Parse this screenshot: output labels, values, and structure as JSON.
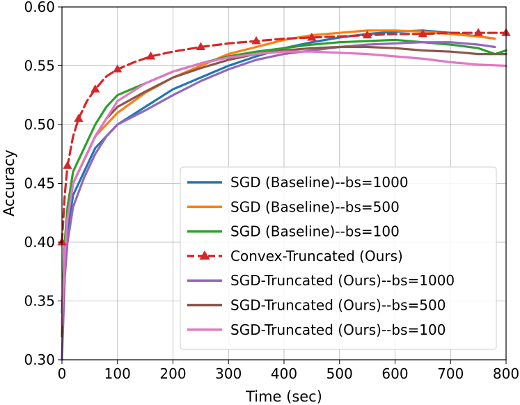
{
  "chart_data": {
    "type": "line",
    "title": "",
    "xlabel": "Time (sec)",
    "ylabel": "Accuracy",
    "xlim": [
      0,
      800
    ],
    "ylim": [
      0.3,
      0.6
    ],
    "xticks": [
      0,
      100,
      200,
      300,
      400,
      500,
      600,
      700,
      800
    ],
    "yticks": [
      0.3,
      0.35,
      0.4,
      0.45,
      0.5,
      0.55,
      0.6
    ],
    "xtick_labels": [
      "0",
      "100",
      "200",
      "300",
      "400",
      "500",
      "600",
      "700",
      "800"
    ],
    "ytick_labels": [
      "0.30",
      "0.35",
      "0.40",
      "0.45",
      "0.50",
      "0.55",
      "0.60"
    ],
    "grid": true,
    "legend_position": "lower-right",
    "series": [
      {
        "name": "SGD (Baseline)--bs=1000",
        "color": "#1f77b4",
        "style": "solid",
        "x": [
          0,
          5,
          10,
          20,
          40,
          60,
          80,
          100,
          150,
          200,
          250,
          300,
          350,
          400,
          450,
          500,
          550,
          600,
          650,
          700,
          750,
          780
        ],
        "y": [
          0.32,
          0.38,
          0.41,
          0.44,
          0.46,
          0.48,
          0.49,
          0.5,
          0.515,
          0.53,
          0.54,
          0.55,
          0.558,
          0.565,
          0.57,
          0.574,
          0.577,
          0.579,
          0.58,
          0.578,
          0.575,
          0.573
        ]
      },
      {
        "name": "SGD (Baseline)--bs=500",
        "color": "#ff7f0e",
        "style": "solid",
        "x": [
          0,
          5,
          10,
          20,
          40,
          60,
          80,
          100,
          150,
          200,
          250,
          300,
          350,
          400,
          450,
          500,
          550,
          600,
          650,
          700,
          750,
          780
        ],
        "y": [
          0.33,
          0.39,
          0.42,
          0.45,
          0.47,
          0.49,
          0.5,
          0.51,
          0.527,
          0.54,
          0.55,
          0.56,
          0.566,
          0.572,
          0.576,
          0.578,
          0.58,
          0.58,
          0.579,
          0.577,
          0.575,
          0.573
        ]
      },
      {
        "name": "SGD (Baseline)--bs=100",
        "color": "#2ca02c",
        "style": "solid",
        "x": [
          0,
          5,
          10,
          20,
          40,
          60,
          80,
          100,
          150,
          200,
          250,
          300,
          350,
          400,
          450,
          500,
          550,
          600,
          650,
          700,
          750,
          780,
          800
        ],
        "y": [
          0.34,
          0.4,
          0.43,
          0.46,
          0.48,
          0.5,
          0.515,
          0.525,
          0.535,
          0.545,
          0.552,
          0.558,
          0.562,
          0.565,
          0.568,
          0.57,
          0.571,
          0.572,
          0.57,
          0.568,
          0.565,
          0.56,
          0.563
        ]
      },
      {
        "name": "Convex-Truncated (Ours)",
        "color": "#d62728",
        "style": "dashed",
        "marker": "triangle",
        "x": [
          0,
          5,
          10,
          20,
          30,
          45,
          60,
          80,
          100,
          130,
          160,
          200,
          250,
          300,
          350,
          400,
          450,
          500,
          550,
          600,
          650,
          700,
          750,
          800
        ],
        "y": [
          0.4,
          0.44,
          0.465,
          0.49,
          0.505,
          0.52,
          0.53,
          0.541,
          0.547,
          0.553,
          0.558,
          0.562,
          0.566,
          0.569,
          0.571,
          0.573,
          0.574,
          0.575,
          0.576,
          0.577,
          0.577,
          0.578,
          0.578,
          0.578
        ]
      },
      {
        "name": "SGD-Truncated (Ours)--bs=1000",
        "color": "#9467bd",
        "style": "solid",
        "x": [
          0,
          5,
          10,
          20,
          40,
          60,
          80,
          100,
          150,
          200,
          250,
          300,
          350,
          400,
          450,
          500,
          550,
          600,
          650,
          700,
          750,
          780
        ],
        "y": [
          0.3,
          0.37,
          0.4,
          0.43,
          0.455,
          0.475,
          0.49,
          0.5,
          0.512,
          0.525,
          0.537,
          0.547,
          0.555,
          0.56,
          0.563,
          0.566,
          0.568,
          0.569,
          0.57,
          0.57,
          0.568,
          0.566
        ]
      },
      {
        "name": "SGD-Truncated (Ours)--bs=500",
        "color": "#8c564b",
        "style": "solid",
        "x": [
          0,
          5,
          10,
          20,
          40,
          60,
          80,
          100,
          150,
          200,
          250,
          300,
          350,
          400,
          450,
          500,
          550,
          600,
          650,
          700,
          750,
          800
        ],
        "y": [
          0.32,
          0.39,
          0.42,
          0.45,
          0.47,
          0.49,
          0.505,
          0.515,
          0.528,
          0.54,
          0.548,
          0.555,
          0.56,
          0.563,
          0.565,
          0.566,
          0.566,
          0.565,
          0.563,
          0.562,
          0.56,
          0.56
        ]
      },
      {
        "name": "SGD-Truncated (Ours)--bs=100",
        "color": "#e377c2",
        "style": "solid",
        "x": [
          0,
          5,
          10,
          20,
          40,
          60,
          80,
          100,
          150,
          200,
          250,
          300,
          350,
          400,
          450,
          500,
          550,
          600,
          650,
          700,
          750,
          800
        ],
        "y": [
          0.33,
          0.39,
          0.42,
          0.45,
          0.47,
          0.49,
          0.505,
          0.52,
          0.535,
          0.545,
          0.552,
          0.557,
          0.56,
          0.562,
          0.562,
          0.561,
          0.56,
          0.558,
          0.556,
          0.553,
          0.551,
          0.55
        ]
      }
    ]
  }
}
